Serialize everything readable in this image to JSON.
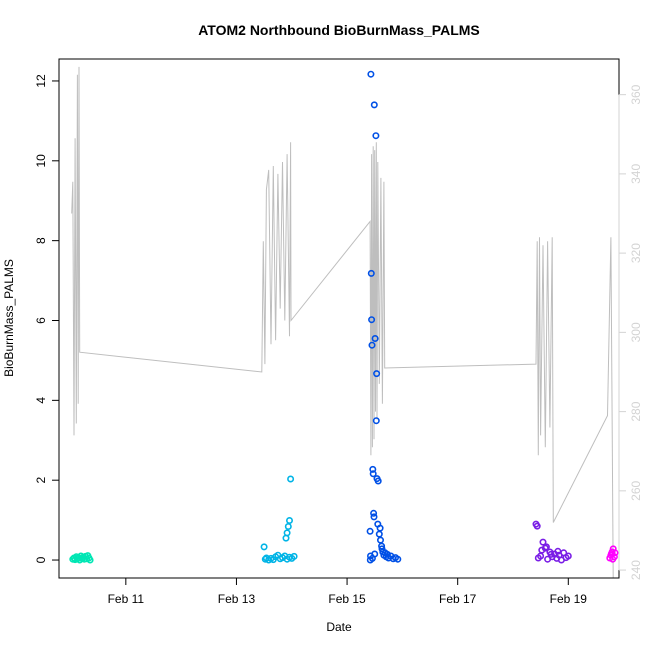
{
  "chart_data": {
    "type": "scatter",
    "title": "ATOM2 Northbound BioBurnMass_PALMS",
    "xlabel": "Date",
    "ylabel": "BioBurnMass_PALMS",
    "xlim": [
      "2018-02-09 19:00",
      "2018-02-19 22:00"
    ],
    "ylim": [
      -0.45,
      12.55
    ],
    "x_ticks": [
      {
        "date": "2018-02-11",
        "label": "Feb 11"
      },
      {
        "date": "2018-02-13",
        "label": "Feb 13"
      },
      {
        "date": "2018-02-15",
        "label": "Feb 15"
      },
      {
        "date": "2018-02-17",
        "label": "Feb 17"
      },
      {
        "date": "2018-02-19",
        "label": "Feb 19"
      }
    ],
    "y_ticks": [
      0,
      2,
      4,
      6,
      8,
      10,
      12
    ],
    "y2_ticks": [
      240,
      260,
      280,
      300,
      320,
      340,
      360
    ],
    "y2lim": [
      238,
      369
    ],
    "y2_color": "#d3d3d3",
    "line_color": "#bebebe",
    "grid": false,
    "legend": "none",
    "series": [
      {
        "color": "#00e6b4",
        "points": [
          [
            "2018-02-10 01:00",
            0.02
          ],
          [
            "2018-02-10 01:30",
            0.05
          ],
          [
            "2018-02-10 02:00",
            0.01
          ],
          [
            "2018-02-10 02:30",
            0.08
          ],
          [
            "2018-02-10 03:00",
            0.03
          ],
          [
            "2018-02-10 03:30",
            0.06
          ],
          [
            "2018-02-10 04:00",
            0.0
          ],
          [
            "2018-02-10 04:30",
            0.1
          ],
          [
            "2018-02-10 05:00",
            0.04
          ],
          [
            "2018-02-10 05:30",
            0.07
          ],
          [
            "2018-02-10 06:00",
            0.02
          ],
          [
            "2018-02-10 06:30",
            0.09
          ],
          [
            "2018-02-10 07:00",
            0.03
          ],
          [
            "2018-02-10 07:30",
            0.11
          ],
          [
            "2018-02-10 08:00",
            0.05
          ],
          [
            "2018-02-10 08:30",
            0.0
          ]
        ]
      },
      {
        "color": "#00b4e6",
        "points": [
          [
            "2018-02-13 12:00",
            0.33
          ],
          [
            "2018-02-13 12:30",
            0.02
          ],
          [
            "2018-02-13 13:00",
            0.05
          ],
          [
            "2018-02-13 14:00",
            0.0
          ],
          [
            "2018-02-13 15:00",
            0.04
          ],
          [
            "2018-02-13 16:00",
            0.01
          ],
          [
            "2018-02-13 17:00",
            0.08
          ],
          [
            "2018-02-13 18:00",
            0.12
          ],
          [
            "2018-02-13 19:00",
            0.03
          ],
          [
            "2018-02-13 20:00",
            0.06
          ],
          [
            "2018-02-13 21:00",
            0.1
          ],
          [
            "2018-02-13 22:00",
            0.02
          ],
          [
            "2018-02-13 23:00",
            0.07
          ],
          [
            "2018-02-14 00:00",
            0.04
          ],
          [
            "2018-02-14 01:00",
            0.09
          ],
          [
            "2018-02-13 21:30",
            0.55
          ],
          [
            "2018-02-13 22:00",
            0.68
          ],
          [
            "2018-02-13 22:30",
            0.84
          ],
          [
            "2018-02-13 23:00",
            0.99
          ],
          [
            "2018-02-13 23:30",
            2.03
          ]
        ]
      },
      {
        "color": "#0050e6",
        "points": [
          [
            "2018-02-15 10:00",
            0.72
          ],
          [
            "2018-02-15 10:20",
            12.17
          ],
          [
            "2018-02-15 10:30",
            7.18
          ],
          [
            "2018-02-15 10:40",
            6.02
          ],
          [
            "2018-02-15 10:50",
            5.38
          ],
          [
            "2018-02-15 11:10",
            2.27
          ],
          [
            "2018-02-15 11:20",
            2.16
          ],
          [
            "2018-02-15 11:30",
            1.17
          ],
          [
            "2018-02-15 11:50",
            11.4
          ],
          [
            "2018-02-15 12:10",
            5.55
          ],
          [
            "2018-02-15 12:30",
            10.63
          ],
          [
            "2018-02-15 12:40",
            3.49
          ],
          [
            "2018-02-15 12:50",
            4.67
          ],
          [
            "2018-02-15 13:00",
            2.04
          ],
          [
            "2018-02-15 13:30",
            1.98
          ],
          [
            "2018-02-15 14:00",
            0.65
          ],
          [
            "2018-02-15 14:30",
            0.5
          ],
          [
            "2018-02-15 15:00",
            0.35
          ],
          [
            "2018-02-15 15:30",
            0.2
          ],
          [
            "2018-02-15 16:00",
            0.12
          ],
          [
            "2018-02-15 17:00",
            0.08
          ],
          [
            "2018-02-15 18:00",
            0.05
          ],
          [
            "2018-02-15 19:00",
            0.1
          ],
          [
            "2018-02-15 20:00",
            0.03
          ],
          [
            "2018-02-15 21:00",
            0.06
          ],
          [
            "2018-02-15 22:00",
            0.02
          ],
          [
            "2018-02-15 10:10",
            0.1
          ],
          [
            "2018-02-15 10:05",
            0.0
          ],
          [
            "2018-02-15 11:00",
            0.04
          ],
          [
            "2018-02-15 12:00",
            0.15
          ],
          [
            "2018-02-15 13:20",
            0.9
          ],
          [
            "2018-02-15 14:20",
            0.8
          ],
          [
            "2018-02-15 11:40",
            1.08
          ],
          [
            "2018-02-15 15:10",
            0.28
          ],
          [
            "2018-02-15 16:30",
            0.18
          ],
          [
            "2018-02-15 17:30",
            0.14
          ]
        ]
      },
      {
        "color": "#7a1ee6",
        "points": [
          [
            "2018-02-18 10:00",
            0.9
          ],
          [
            "2018-02-18 10:30",
            0.85
          ],
          [
            "2018-02-18 11:00",
            0.05
          ],
          [
            "2018-02-18 12:00",
            0.1
          ],
          [
            "2018-02-18 13:00",
            0.45
          ],
          [
            "2018-02-18 14:00",
            0.3
          ],
          [
            "2018-02-18 15:00",
            0.02
          ],
          [
            "2018-02-18 16:00",
            0.2
          ],
          [
            "2018-02-18 17:00",
            0.08
          ],
          [
            "2018-02-18 18:00",
            0.15
          ],
          [
            "2018-02-18 19:00",
            0.04
          ],
          [
            "2018-02-18 20:00",
            0.12
          ],
          [
            "2018-02-18 21:00",
            0.0
          ],
          [
            "2018-02-18 22:00",
            0.18
          ],
          [
            "2018-02-18 23:00",
            0.06
          ],
          [
            "2018-02-19 00:00",
            0.1
          ],
          [
            "2018-02-18 12:30",
            0.25
          ],
          [
            "2018-02-18 14:30",
            0.33
          ],
          [
            "2018-02-18 16:30",
            0.14
          ],
          [
            "2018-02-18 19:30",
            0.22
          ]
        ]
      },
      {
        "color": "#ff00ff",
        "points": [
          [
            "2018-02-19 18:00",
            0.05
          ],
          [
            "2018-02-19 18:30",
            0.12
          ],
          [
            "2018-02-19 19:00",
            0.2
          ],
          [
            "2018-02-19 19:30",
            0.28
          ],
          [
            "2018-02-19 20:00",
            0.08
          ],
          [
            "2018-02-19 18:45",
            0.16
          ],
          [
            "2018-02-19 19:15",
            0.02
          ],
          [
            "2018-02-19 20:15",
            0.18
          ]
        ]
      }
    ],
    "y2_line": [
      [
        "2018-02-10 00:30",
        330
      ],
      [
        "2018-02-10 01:00",
        338
      ],
      [
        "2018-02-10 01:30",
        274
      ],
      [
        "2018-02-10 02:00",
        349
      ],
      [
        "2018-02-10 02:30",
        277
      ],
      [
        "2018-02-10 03:00",
        365
      ],
      [
        "2018-02-10 03:20",
        282
      ],
      [
        "2018-02-10 03:40",
        367
      ],
      [
        "2018-02-10 04:00",
        295
      ],
      [
        "2018-02-13 11:00",
        290
      ],
      [
        "2018-02-13 11:40",
        323
      ],
      [
        "2018-02-13 12:20",
        292
      ],
      [
        "2018-02-13 13:00",
        336
      ],
      [
        "2018-02-13 14:00",
        341
      ],
      [
        "2018-02-13 15:00",
        297
      ],
      [
        "2018-02-13 16:00",
        342
      ],
      [
        "2018-02-13 17:00",
        298
      ],
      [
        "2018-02-13 18:00",
        340
      ],
      [
        "2018-02-13 19:00",
        306
      ],
      [
        "2018-02-13 20:00",
        343
      ],
      [
        "2018-02-13 21:00",
        303
      ],
      [
        "2018-02-13 22:00",
        345
      ],
      [
        "2018-02-13 23:00",
        299
      ],
      [
        "2018-02-13 23:30",
        348
      ],
      [
        "2018-02-13 23:40",
        303
      ],
      [
        "2018-02-15 10:00",
        328
      ],
      [
        "2018-02-15 10:20",
        269
      ],
      [
        "2018-02-15 10:40",
        345
      ],
      [
        "2018-02-15 11:00",
        271
      ],
      [
        "2018-02-15 11:20",
        347
      ],
      [
        "2018-02-15 11:40",
        273
      ],
      [
        "2018-02-15 12:00",
        346
      ],
      [
        "2018-02-15 12:20",
        280
      ],
      [
        "2018-02-15 12:40",
        348
      ],
      [
        "2018-02-15 13:00",
        278
      ],
      [
        "2018-02-15 13:20",
        343
      ],
      [
        "2018-02-15 14:00",
        287
      ],
      [
        "2018-02-15 14:40",
        339
      ],
      [
        "2018-02-15 15:20",
        282
      ],
      [
        "2018-02-15 16:00",
        338
      ],
      [
        "2018-02-15 16:20",
        291
      ],
      [
        "2018-02-18 10:00",
        292
      ],
      [
        "2018-02-18 10:30",
        323
      ],
      [
        "2018-02-18 11:00",
        269
      ],
      [
        "2018-02-18 11:30",
        324
      ],
      [
        "2018-02-18 12:00",
        274
      ],
      [
        "2018-02-18 13:00",
        322
      ],
      [
        "2018-02-18 14:00",
        271
      ],
      [
        "2018-02-18 15:00",
        323
      ],
      [
        "2018-02-18 16:00",
        276
      ],
      [
        "2018-02-18 17:00",
        324
      ],
      [
        "2018-02-18 17:30",
        252
      ],
      [
        "2018-02-19 17:00",
        279
      ],
      [
        "2018-02-19 18:30",
        324
      ],
      [
        "2018-02-19 19:30",
        238
      ]
    ]
  }
}
